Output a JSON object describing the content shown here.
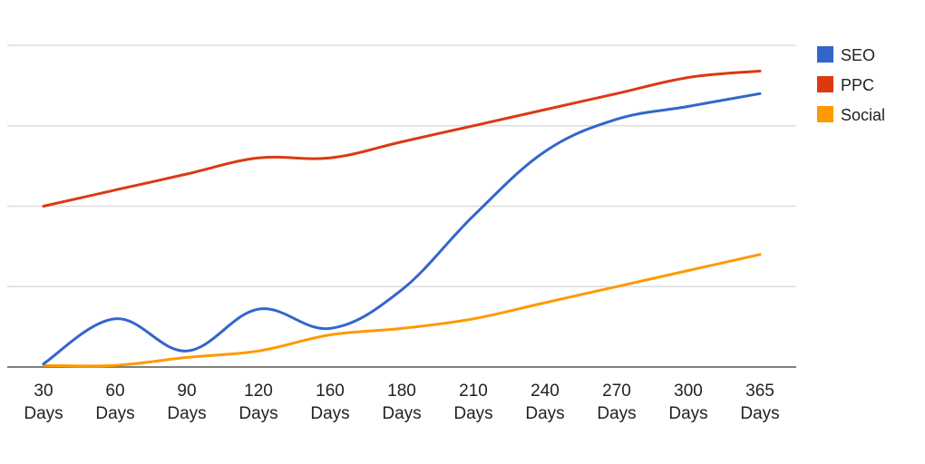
{
  "chart_data": {
    "type": "line",
    "title": "",
    "xlabel": "",
    "ylabel": "",
    "categories": [
      [
        "30",
        "Days"
      ],
      [
        "60",
        "Days"
      ],
      [
        "90",
        "Days"
      ],
      [
        "120",
        "Days"
      ],
      [
        "160",
        "Days"
      ],
      [
        "180",
        "Days"
      ],
      [
        "210",
        "Days"
      ],
      [
        "240",
        "Days"
      ],
      [
        "270",
        "Days"
      ],
      [
        "300",
        "Days"
      ],
      [
        "365",
        "Days"
      ]
    ],
    "ylim": [
      0,
      100
    ],
    "gridlines": [
      0,
      25,
      50,
      75,
      100
    ],
    "legend_position": "right",
    "series": [
      {
        "name": "SEO",
        "color": "#3366cc",
        "values": [
          1,
          15,
          5,
          18,
          12,
          24,
          47,
          67,
          77,
          81,
          85
        ]
      },
      {
        "name": "PPC",
        "color": "#dc3912",
        "values": [
          50,
          55,
          60,
          65,
          65,
          70,
          75,
          80,
          85,
          90,
          92
        ]
      },
      {
        "name": "Social",
        "color": "#ff9900",
        "values": [
          0.5,
          0.5,
          3,
          5,
          10,
          12,
          15,
          20,
          25,
          30,
          35
        ]
      }
    ]
  }
}
